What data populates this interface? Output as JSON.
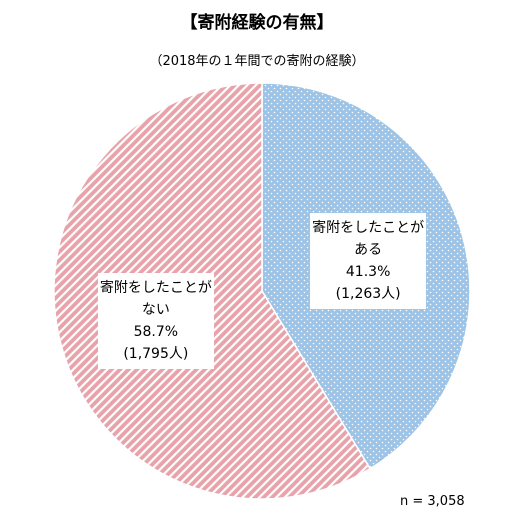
{
  "chart_data": {
    "type": "pie",
    "title": "【寄附経験の有無】",
    "subtitle": "（2018年の１年間での寄附の経験）",
    "categories": [
      "寄附をしたことがある",
      "寄附をしたことがない"
    ],
    "values": [
      41.3,
      58.7
    ],
    "value_labels": [
      "41.3%",
      "58.7%"
    ],
    "counts": [
      1263,
      1795
    ],
    "count_labels": [
      "(1,263人)",
      "(1,795人)"
    ],
    "colors": [
      "#9dc3e6",
      "#e8a2aa"
    ],
    "total": {
      "value": 3058,
      "label": "n = 3,058"
    }
  }
}
